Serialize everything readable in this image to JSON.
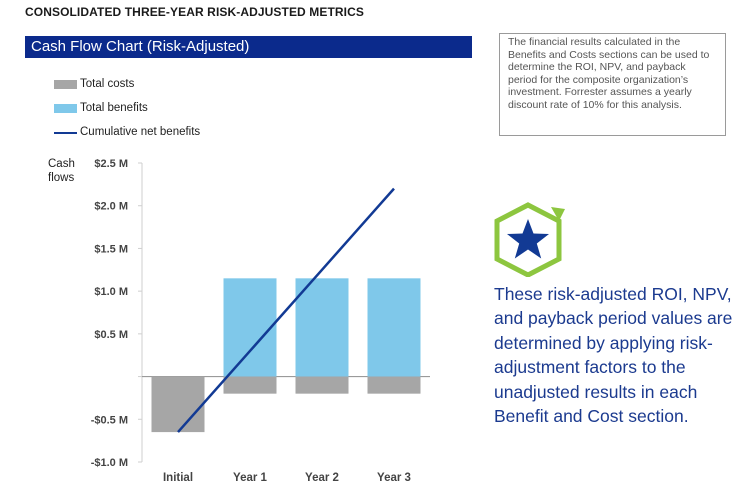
{
  "page_heading": "CONSOLIDATED THREE-YEAR RISK-ADJUSTED METRICS",
  "chart_title": "Cash Flow Chart (Risk-Adjusted)",
  "note_text": "The financial results calculated in the Benefits and Costs sections can be used to determine the ROI, NPV, and payback period for the composite organization’s investment. Forrester assumes a yearly discount rate of 10% for this analysis.",
  "callout_text": "These risk-adjusted ROI, NPV, and payback period values are determined by applying risk-adjustment factors to the unadjusted results in each Benefit and Cost section.",
  "badge_icon": "star-icon",
  "colors": {
    "title_bar": "#0b2a8c",
    "costs": "#a6a6a6",
    "benefits": "#7fc8ea",
    "cumulative_line": "#123a94",
    "callout_text": "#1b3a8f",
    "badge_hexagon": "#8dc63f",
    "badge_star": "#123a94"
  },
  "chart_data": {
    "type": "bar",
    "title": "Cash Flow Chart (Risk-Adjusted)",
    "ylabel": "Cash flows",
    "categories": [
      "Initial",
      "Year 1",
      "Year 2",
      "Year 3"
    ],
    "ylim": [
      -1.0,
      2.5
    ],
    "yticks": [
      -1.0,
      -0.5,
      0,
      0.5,
      1.0,
      1.5,
      2.0,
      2.5
    ],
    "ytick_labels": [
      "-$1.0 M",
      "-$0.5 M",
      "",
      "$0.5 M",
      "$1.0 M",
      "$1.5 M",
      "$2.0 M",
      "$2.5 M"
    ],
    "legend_position": "top-left",
    "grid": false,
    "series": [
      {
        "name": "Total costs",
        "kind": "bar",
        "values": [
          -0.65,
          -0.2,
          -0.2,
          -0.2
        ]
      },
      {
        "name": "Total benefits",
        "kind": "bar",
        "values": [
          0,
          1.15,
          1.15,
          1.15
        ]
      },
      {
        "name": "Cumulative net benefits",
        "kind": "line",
        "values": [
          -0.65,
          0.3,
          1.25,
          2.2
        ]
      }
    ]
  }
}
